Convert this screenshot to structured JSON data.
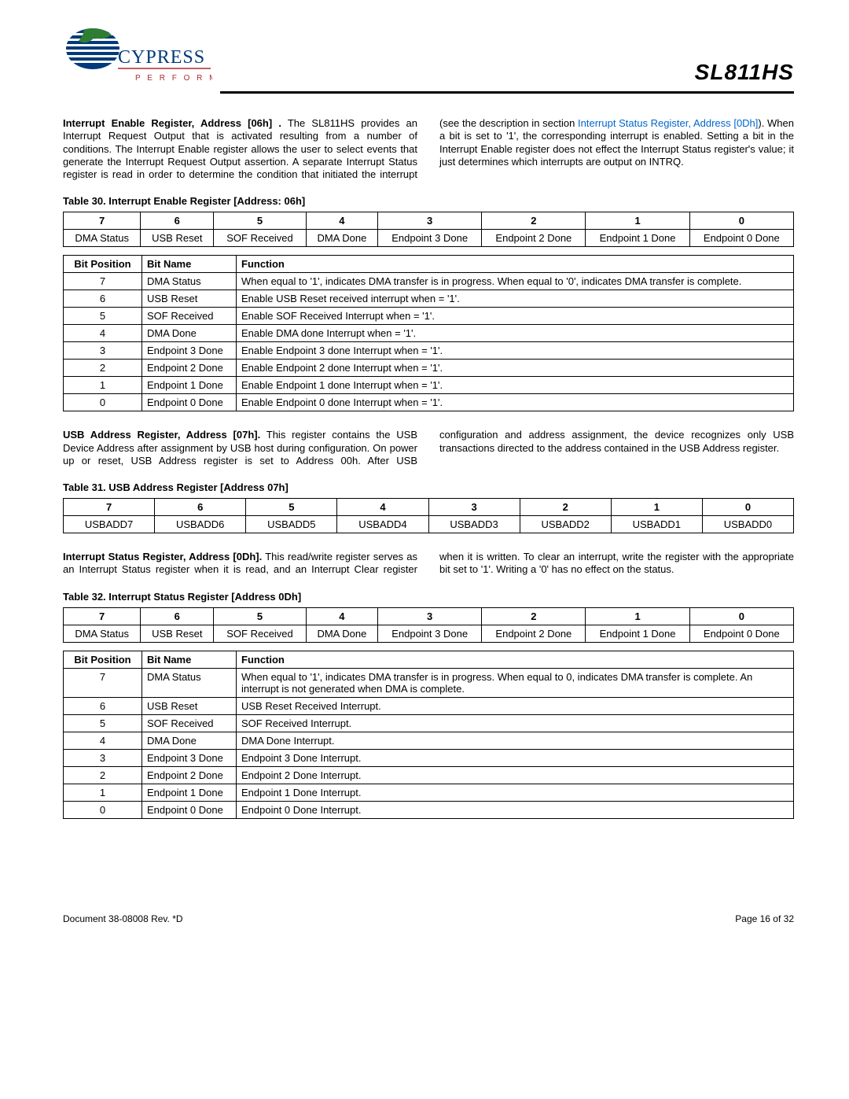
{
  "partNumber": "SL811HS",
  "logo": {
    "company": "CYPRESS",
    "tagline": "P E R F O R M",
    "colorBlue": "#003a7a",
    "colorRed": "#b2292e",
    "colorGreen": "#2e7d32"
  },
  "para1": {
    "lead": "Interrupt Enable Register, Address [06h] .",
    "body1": " The    SL811HS provides an Interrupt Request Output that is activated resulting from a number of conditions. The Interrupt Enable register allows the user to select events that generate the Interrupt Request Output assertion. A separate Interrupt Status register is read in order to determine the condition that initiated the interrupt (see the description in section  ",
    "linkText": "Interrupt Status Register, Address [0Dh]",
    "body2": "). When a bit is set to '1', the corresponding interrupt is enabled. Setting a bit in the Interrupt Enable register does not effect the Interrupt Status register's value; it just determines which interrupts are output on INTRQ."
  },
  "table30": {
    "caption": "Table 30.  Interrupt Enable Register [Address: 06h]",
    "bits": [
      "7",
      "6",
      "5",
      "4",
      "3",
      "2",
      "1",
      "0"
    ],
    "names": [
      "DMA Status",
      "USB Reset",
      "SOF Received",
      "DMA Done",
      "Endpoint 3 Done",
      "Endpoint 2 Done",
      "Endpoint 1 Done",
      "Endpoint 0 Done"
    ],
    "funcHeaders": [
      "Bit Position",
      "Bit Name",
      "Function"
    ],
    "funcRows": [
      [
        "7",
        "DMA Status",
        "When equal to '1', indicates DMA transfer is in progress. When equal to '0', indicates DMA transfer is complete."
      ],
      [
        "6",
        "USB Reset",
        "Enable USB Reset received interrupt when = '1'."
      ],
      [
        "5",
        "SOF Received",
        "Enable SOF Received Interrupt when = '1'."
      ],
      [
        "4",
        "DMA Done",
        "Enable DMA done Interrupt when = '1'."
      ],
      [
        "3",
        "Endpoint 3 Done",
        "Enable Endpoint 3 done Interrupt when = '1'."
      ],
      [
        "2",
        "Endpoint 2 Done",
        "Enable Endpoint 2 done Interrupt when = '1'."
      ],
      [
        "1",
        "Endpoint 1 Done",
        "Enable Endpoint 1 done Interrupt when = '1'."
      ],
      [
        "0",
        "Endpoint 0 Done",
        "Enable Endpoint 0 done Interrupt when = '1'."
      ]
    ]
  },
  "para2": {
    "lead": "USB Address Register, Address [07h].",
    "body": " This        register contains the USB Device Address after assignment by USB host during configuration. On power up or reset, USB Address register is set to Address 00h. After USB configuration and address assignment, the device recognizes only USB transactions directed to the address contained in the USB Address register."
  },
  "table31": {
    "caption": "Table 31.  USB Address Register [Address 07h]",
    "bits": [
      "7",
      "6",
      "5",
      "4",
      "3",
      "2",
      "1",
      "0"
    ],
    "names": [
      "USBADD7",
      "USBADD6",
      "USBADD5",
      "USBADD4",
      "USBADD3",
      "USBADD2",
      "USBADD1",
      "USBADD0"
    ]
  },
  "para3": {
    "lead": "Interrupt Status Register, Address [0Dh].",
    "body": " This    read/write register serves as an Interrupt Status register when it is read, and an Interrupt Clear register when it is written. To clear an interrupt, write the register with the appropriate bit set to '1'. Writing a '0' has no effect on the status."
  },
  "table32": {
    "caption": "Table 32.  Interrupt Status Register [Address 0Dh]",
    "bits": [
      "7",
      "6",
      "5",
      "4",
      "3",
      "2",
      "1",
      "0"
    ],
    "names": [
      "DMA Status",
      "USB Reset",
      "SOF Received",
      "DMA Done",
      "Endpoint 3 Done",
      "Endpoint 2 Done",
      "Endpoint 1 Done",
      "Endpoint 0 Done"
    ],
    "funcHeaders": [
      "Bit Position",
      "Bit Name",
      "Function"
    ],
    "funcRows": [
      [
        "7",
        "DMA Status",
        "When equal to '1', indicates DMA transfer is in progress. When equal to 0, indicates DMA transfer is complete. An interrupt is not generated when DMA is complete."
      ],
      [
        "6",
        "USB Reset",
        "USB Reset Received Interrupt."
      ],
      [
        "5",
        "SOF Received",
        "SOF Received Interrupt."
      ],
      [
        "4",
        "DMA Done",
        "DMA Done Interrupt."
      ],
      [
        "3",
        "Endpoint 3 Done",
        "Endpoint 3 Done Interrupt."
      ],
      [
        "2",
        "Endpoint 2 Done",
        "Endpoint 2 Done Interrupt."
      ],
      [
        "1",
        "Endpoint 1 Done",
        "Endpoint 1 Done Interrupt."
      ],
      [
        "0",
        "Endpoint 0 Done",
        "Endpoint 0 Done Interrupt."
      ]
    ]
  },
  "footer": {
    "doc": "Document 38-08008 Rev. *D",
    "page": "Page 16 of 32"
  }
}
